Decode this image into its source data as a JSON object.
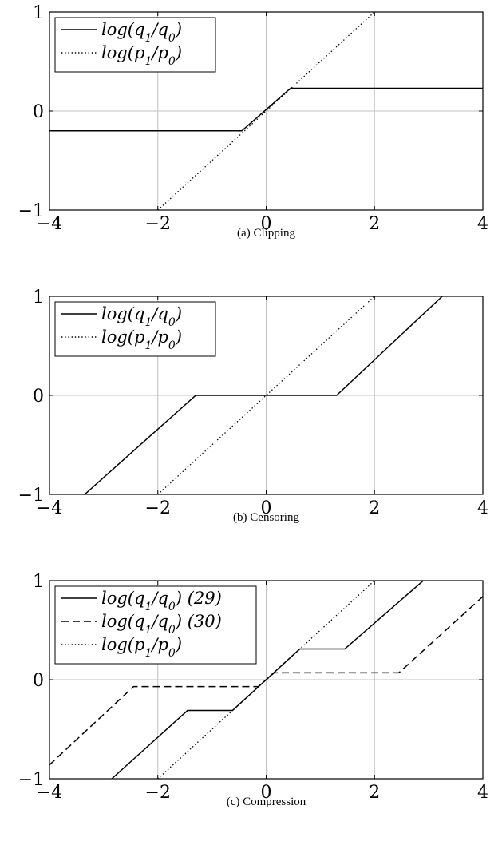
{
  "chart_data": [
    {
      "type": "line",
      "caption": "(a) Clipping",
      "xlim": [
        -4,
        4
      ],
      "ylim": [
        -1,
        1
      ],
      "xticks": [
        "−4",
        "−2",
        "0",
        "2",
        "4"
      ],
      "yticks": [
        "1",
        "0",
        "−1"
      ],
      "grid": true,
      "legend_position": "top-left",
      "series": [
        {
          "name": "log(q1/q0)",
          "style": "solid",
          "x": [
            -4,
            -0.45,
            0.45,
            4
          ],
          "y": [
            -0.2,
            -0.2,
            0.23,
            0.23
          ]
        },
        {
          "name": "log(p1/p0)",
          "style": "dotted",
          "x": [
            -2,
            2
          ],
          "y": [
            -1,
            1
          ]
        }
      ]
    },
    {
      "type": "line",
      "caption": "(b) Censoring",
      "xlim": [
        -4,
        4
      ],
      "ylim": [
        -1,
        1
      ],
      "xticks": [
        "−4",
        "−2",
        "0",
        "2",
        "4"
      ],
      "yticks": [
        "1",
        "0",
        "−1"
      ],
      "grid": true,
      "legend_position": "top-left",
      "series": [
        {
          "name": "log(q1/q0)",
          "style": "solid",
          "x": [
            -3.35,
            -1.3,
            1.3,
            3.25
          ],
          "y": [
            -1,
            0,
            0,
            1
          ]
        },
        {
          "name": "log(p1/p0)",
          "style": "dotted",
          "x": [
            -2,
            2
          ],
          "y": [
            -1,
            1
          ]
        }
      ]
    },
    {
      "type": "line",
      "caption": "(c) Compression",
      "xlim": [
        -4,
        4
      ],
      "ylim": [
        -1,
        1
      ],
      "xticks": [
        "−4",
        "−2",
        "0",
        "2",
        "4"
      ],
      "yticks": [
        "1",
        "0",
        "−1"
      ],
      "grid": true,
      "legend_position": "top-left",
      "series": [
        {
          "name": "log(q1/q0) (29)",
          "style": "solid",
          "x": [
            -2.85,
            -1.45,
            -0.62,
            0.62,
            1.45,
            2.9
          ],
          "y": [
            -1,
            -0.31,
            -0.31,
            0.31,
            0.31,
            1
          ]
        },
        {
          "name": "log(q1/q0) (30)",
          "style": "dashed",
          "x": [
            -4,
            -2.45,
            -0.15,
            0.15,
            2.45,
            4
          ],
          "y": [
            -0.86,
            -0.07,
            -0.07,
            0.07,
            0.07,
            0.84
          ]
        },
        {
          "name": "log(p1/p0)",
          "style": "dotted",
          "x": [
            -2,
            2
          ],
          "y": [
            -1,
            1
          ]
        }
      ]
    }
  ]
}
